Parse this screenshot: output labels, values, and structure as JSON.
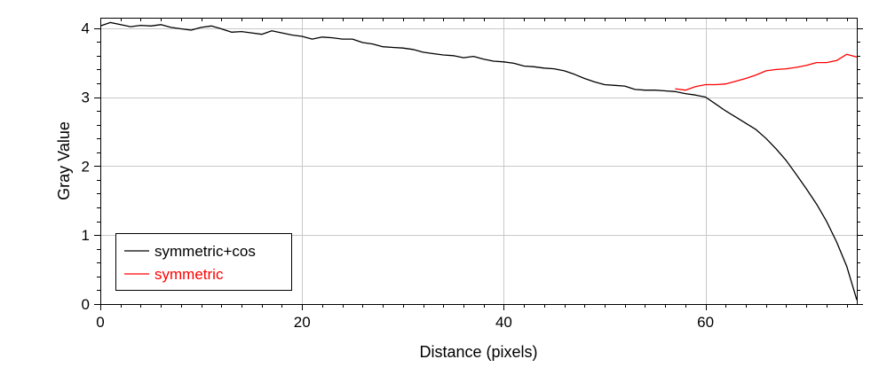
{
  "chart_data": {
    "type": "line",
    "xlabel": "Distance (pixels)",
    "ylabel": "Gray Value",
    "xlim": [
      0,
      75
    ],
    "ylim": [
      0,
      4.15
    ],
    "xticks": [
      0,
      20,
      40,
      60
    ],
    "yticks": [
      0,
      1,
      2,
      3,
      4
    ],
    "grid": true,
    "legend_position": "bottom-left",
    "series": [
      {
        "name": "symmetric+cos",
        "color": "#000000",
        "x": [
          0,
          1,
          2,
          3,
          4,
          5,
          6,
          7,
          8,
          9,
          10,
          11,
          12,
          13,
          14,
          15,
          16,
          17,
          18,
          19,
          20,
          21,
          22,
          23,
          24,
          25,
          26,
          27,
          28,
          29,
          30,
          31,
          32,
          33,
          34,
          35,
          36,
          37,
          38,
          39,
          40,
          41,
          42,
          43,
          44,
          45,
          46,
          47,
          48,
          49,
          50,
          51,
          52,
          53,
          54,
          55,
          56,
          57,
          58,
          59,
          60,
          61,
          62,
          63,
          64,
          65,
          66,
          67,
          68,
          69,
          70,
          71,
          72,
          73,
          74,
          75
        ],
        "y": [
          4.03,
          4.08,
          4.05,
          4.02,
          4.04,
          4.03,
          4.05,
          4.01,
          3.99,
          3.97,
          4.01,
          4.03,
          3.99,
          3.94,
          3.95,
          3.93,
          3.91,
          3.96,
          3.93,
          3.9,
          3.88,
          3.84,
          3.87,
          3.86,
          3.84,
          3.84,
          3.79,
          3.77,
          3.73,
          3.72,
          3.71,
          3.69,
          3.65,
          3.63,
          3.61,
          3.6,
          3.57,
          3.59,
          3.55,
          3.52,
          3.51,
          3.49,
          3.45,
          3.44,
          3.42,
          3.41,
          3.38,
          3.33,
          3.27,
          3.22,
          3.18,
          3.17,
          3.16,
          3.11,
          3.1,
          3.1,
          3.09,
          3.08,
          3.05,
          3.03,
          3.0,
          2.9,
          2.8,
          2.71,
          2.62,
          2.53,
          2.4,
          2.25,
          2.08,
          1.88,
          1.67,
          1.45,
          1.2,
          0.9,
          0.55,
          0.06
        ]
      },
      {
        "name": "symmetric",
        "color": "#ff0000",
        "x": [
          57,
          58,
          59,
          60,
          61,
          62,
          63,
          64,
          65,
          66,
          67,
          68,
          69,
          70,
          71,
          72,
          73,
          74,
          75
        ],
        "y": [
          3.12,
          3.1,
          3.15,
          3.18,
          3.18,
          3.19,
          3.23,
          3.27,
          3.32,
          3.38,
          3.4,
          3.41,
          3.43,
          3.46,
          3.5,
          3.5,
          3.53,
          3.62,
          3.58
        ]
      }
    ]
  }
}
